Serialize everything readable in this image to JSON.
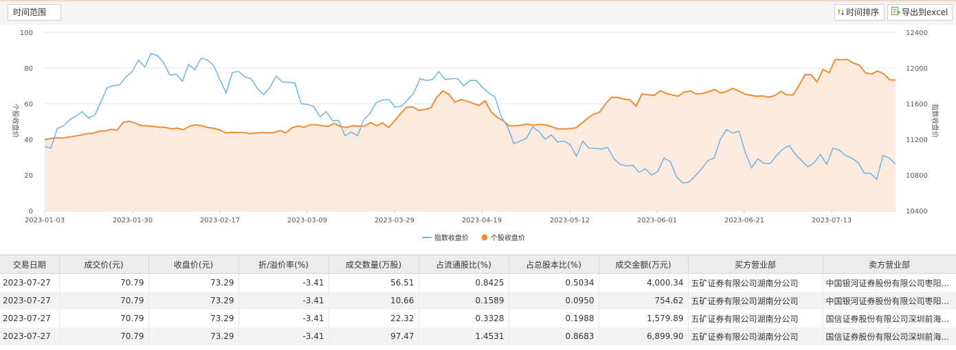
{
  "toolbar": {
    "time_range_label": "时间范围",
    "sort_label": "时间排序",
    "export_label": "导出到excel"
  },
  "chart_data": {
    "type": "line",
    "x_tick_labels": [
      "2023-01-03",
      "2023-01-30",
      "2023-02-17",
      "2023-03-09",
      "2023-03-29",
      "2023-04-19",
      "2023-05-12",
      "2023-06-01",
      "2023-06-21",
      "2023-07-13"
    ],
    "ylabel_left": "个股收盘价",
    "ylabel_right": "指数收盘价",
    "ylim_left": [
      0,
      100
    ],
    "ylim_right": [
      10400,
      12400
    ],
    "yticks_left": [
      0,
      20,
      40,
      60,
      80,
      100
    ],
    "yticks_right": [
      10400,
      10800,
      11200,
      11600,
      12000,
      12400
    ],
    "grid": "horizontal",
    "legend_position": "bottom-center",
    "series": [
      {
        "name": "指数收盘价",
        "axis": "right",
        "color": "#6cb4e4",
        "values": [
          11120,
          11100,
          11320,
          11350,
          11420,
          11460,
          11510,
          11440,
          11470,
          11620,
          11780,
          11800,
          11810,
          11900,
          11960,
          12090,
          12010,
          12160,
          12140,
          12060,
          11920,
          11930,
          11850,
          12040,
          11980,
          12110,
          12090,
          12030,
          11870,
          11720,
          11950,
          11960,
          11900,
          11880,
          11770,
          11700,
          11780,
          11910,
          11840,
          11840,
          11830,
          11600,
          11590,
          11570,
          11450,
          11510,
          11410,
          11410,
          11240,
          11280,
          11240,
          11420,
          11490,
          11610,
          11640,
          11650,
          11560,
          11570,
          11640,
          11720,
          11880,
          11860,
          11870,
          11960,
          11870,
          11880,
          11880,
          11800,
          11860,
          11860,
          11780,
          11720,
          11670,
          11450,
          11340,
          11150,
          11180,
          11210,
          11340,
          11290,
          11200,
          11250,
          11170,
          11180,
          11140,
          11010,
          11180,
          11100,
          11100,
          11090,
          11110,
          10980,
          10920,
          10900,
          10910,
          10830,
          10870,
          10800,
          10840,
          10990,
          10950,
          10780,
          10710,
          10720,
          10790,
          10870,
          10960,
          10990,
          11200,
          11310,
          11270,
          11290,
          11050,
          10880,
          10980,
          10930,
          10930,
          11020,
          11090,
          11130,
          11030,
          10960,
          10890,
          10940,
          11030,
          10920,
          11100,
          11080,
          11020,
          10990,
          10940,
          10820,
          10820,
          10750,
          11020,
          10990,
          10920
        ]
      },
      {
        "name": "个股收盘价",
        "axis": "left",
        "color": "#f28a2e",
        "values": [
          39.8,
          40.5,
          40.9,
          40.7,
          41.2,
          41.8,
          42.4,
          43.1,
          43.4,
          44.5,
          44.7,
          45.6,
          45.1,
          49.5,
          50.1,
          49.1,
          47.6,
          47.6,
          47.2,
          46.8,
          46.7,
          45.8,
          46.2,
          45.4,
          47.4,
          48.1,
          47.6,
          46.6,
          46.2,
          45.3,
          43.6,
          44.0,
          43.8,
          43.8,
          43.2,
          43.5,
          43.9,
          43.6,
          43.8,
          44.9,
          43.6,
          46.5,
          47.5,
          46.7,
          48.2,
          48.2,
          47.6,
          47.3,
          48.9,
          47.2,
          46.6,
          47.6,
          47.3,
          47.4,
          49.3,
          47.7,
          49.1,
          46.6,
          50.4,
          54.5,
          58.0,
          58.1,
          56.2,
          56.8,
          57.7,
          63.7,
          67.1,
          65.1,
          60.8,
          62.4,
          61.4,
          60.1,
          59.0,
          61.6,
          55.3,
          52.4,
          50.3,
          47.5,
          47.6,
          47.9,
          48.5,
          47.9,
          48.4,
          48.1,
          47.1,
          45.8,
          45.8,
          46.0,
          46.4,
          49.0,
          51.8,
          54.1,
          55.3,
          60.1,
          63.6,
          63.5,
          62.5,
          62.1,
          58.6,
          65.5,
          64.9,
          64.6,
          67.2,
          65.7,
          64.9,
          64.2,
          66.5,
          67.1,
          65.4,
          65.7,
          66.7,
          67.9,
          66.0,
          66.8,
          68.6,
          67.1,
          65.4,
          64.6,
          64.2,
          64.3,
          63.6,
          64.5,
          66.9,
          64.9,
          64.8,
          70.1,
          76.3,
          76.2,
          72.2,
          79.1,
          77.3,
          84.8,
          84.5,
          84.8,
          82.7,
          81.6,
          77.3,
          76.5,
          78.3,
          76.8,
          73.4,
          73.2
        ]
      }
    ]
  },
  "table": {
    "headers": [
      "交易日期",
      "成交价(元)",
      "收盘价(元)",
      "折/溢价率(%)",
      "成交数量(万股)",
      "占流通股比(%)",
      "占总股本比(%)",
      "成交金额(万元)",
      "买方营业部",
      "卖方营业部"
    ],
    "rows": [
      [
        "2023-07-27",
        "70.79",
        "73.29",
        "-3.41",
        "56.51",
        "0.8425",
        "0.5034",
        "4,000.34",
        "五矿证券有限公司湖南分公司",
        "中国银河证券股份有限公司枣阳..."
      ],
      [
        "2023-07-27",
        "70.79",
        "73.29",
        "-3.41",
        "10.66",
        "0.1589",
        "0.0950",
        "754.62",
        "五矿证券有限公司湖南分公司",
        "中国银河证券股份有限公司枣阳..."
      ],
      [
        "2023-07-27",
        "70.79",
        "73.29",
        "-3.41",
        "22.32",
        "0.3328",
        "0.1988",
        "1,579.89",
        "五矿证券有限公司湖南分公司",
        "国信证券股份有限公司深圳前海..."
      ],
      [
        "2023-07-27",
        "70.79",
        "73.29",
        "-3.41",
        "97.47",
        "1.4531",
        "0.8683",
        "6,899.90",
        "五矿证券有限公司湖南分公司",
        "国信证券股份有限公司深圳前海..."
      ]
    ]
  }
}
